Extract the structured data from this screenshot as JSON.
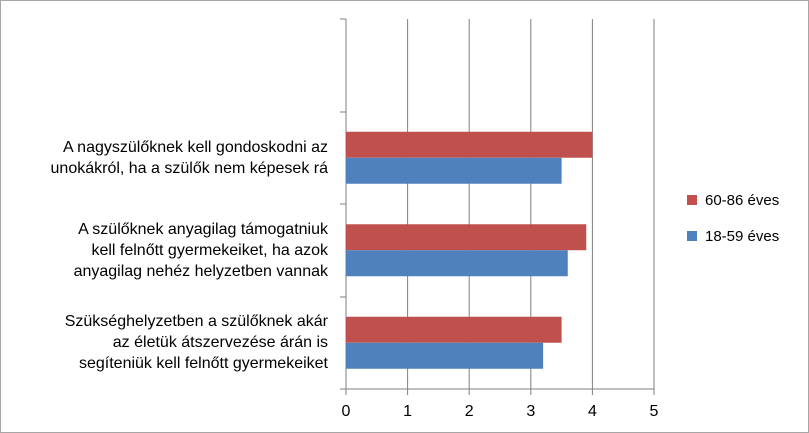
{
  "chart_data": {
    "type": "bar",
    "orientation": "horizontal",
    "categories": [
      "A nagyszülőknek kell gondoskodni az unokákról, ha a szülők nem képesek rá",
      "A szülőknek anyagilag támogatniuk kell felnőtt gyermekeiket, ha azok anyagilag nehéz helyzetben vannak",
      "Szükséghelyzetben a szülőknek akár az életük átszervezése árán is segíteniük kell felnőtt gyermekeiket"
    ],
    "category_lines": [
      [
        "A nagyszülőknek kell gondoskodni az",
        "unokákról, ha a szülők nem képesek rá"
      ],
      [
        "A szülőknek anyagilag támogatniuk",
        "kell felnőtt gyermekeiket, ha azok",
        "anyagilag nehéz helyzetben vannak"
      ],
      [
        "Szükséghelyzetben a szülőknek akár",
        "az életük átszervezése árán is",
        "segíteniük kell felnőtt gyermekeiket"
      ]
    ],
    "series": [
      {
        "name": "60-86 éves",
        "color": "#c0504d",
        "values": [
          4.0,
          3.9,
          3.5
        ]
      },
      {
        "name": "18-59 éves",
        "color": "#4f81bd",
        "values": [
          3.5,
          3.6,
          3.2
        ]
      }
    ],
    "xlim": [
      0,
      5
    ],
    "xticks": [
      0,
      1,
      2,
      3,
      4,
      5
    ],
    "grid": true,
    "legend_position": "right",
    "title": "",
    "xlabel": "",
    "ylabel": ""
  }
}
